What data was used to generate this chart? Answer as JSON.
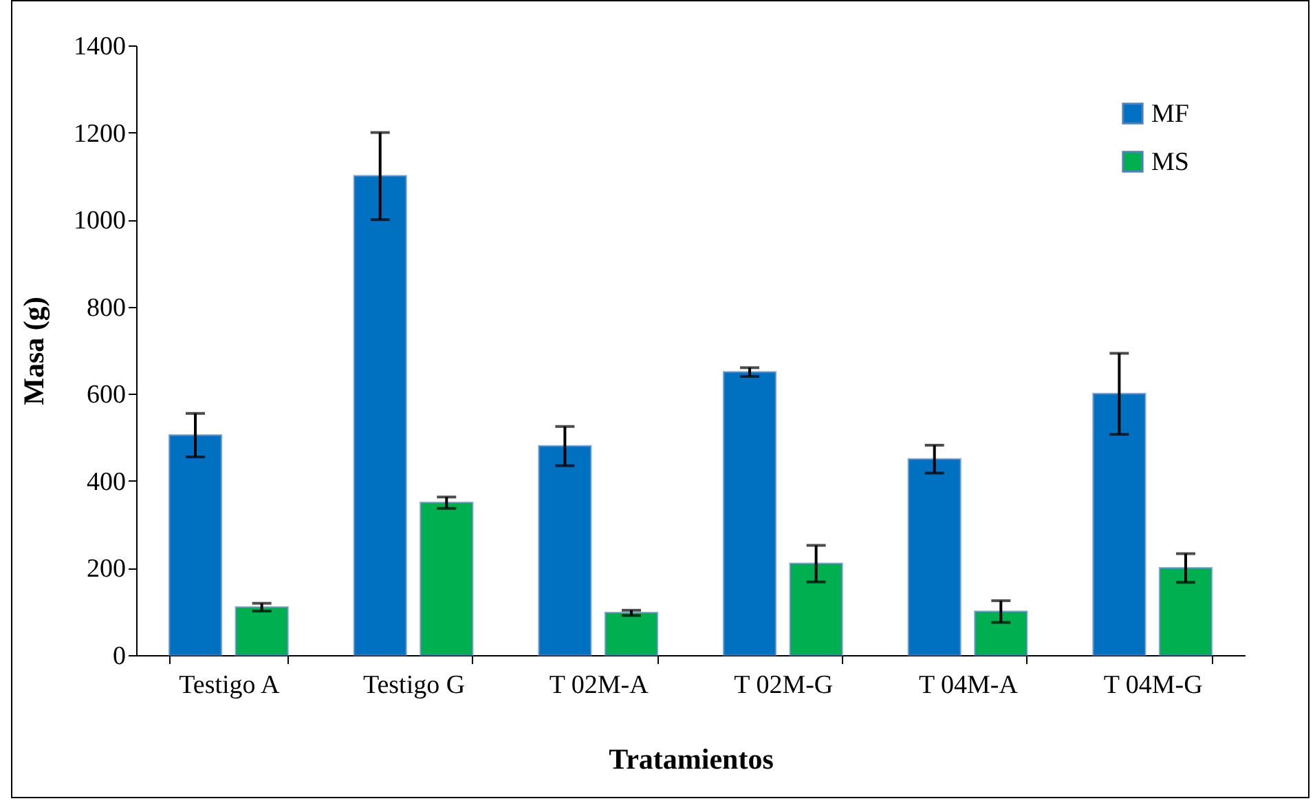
{
  "chart_data": {
    "type": "bar",
    "xlabel": "Tratamientos",
    "ylabel": "Masa (g)",
    "categories": [
      "Testigo A",
      "Testigo G",
      "T 02M-A",
      "T 02M-G",
      "T 04M-A",
      "T 04M-G"
    ],
    "series": [
      {
        "name": "MF",
        "color": "#0070c0",
        "values": [
          505,
          1100,
          480,
          650,
          450,
          600
        ],
        "errors": [
          50,
          100,
          45,
          10,
          32,
          93
        ]
      },
      {
        "name": "MS",
        "color": "#00b050",
        "values": [
          110,
          350,
          97,
          210,
          100,
          200
        ],
        "errors": [
          9,
          13,
          6,
          42,
          25,
          33
        ]
      }
    ],
    "ylim": [
      0,
      1400
    ],
    "yticks": [
      0,
      200,
      400,
      600,
      800,
      1000,
      1200,
      1400
    ],
    "grid": false,
    "legend": "top right"
  }
}
